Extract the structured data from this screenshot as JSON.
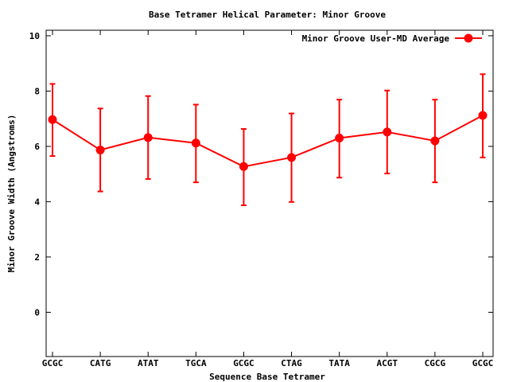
{
  "chart_data": {
    "type": "line",
    "title": "Base Tetramer Helical Parameter: Minor Groove",
    "xlabel": "Sequence Base Tetramer",
    "ylabel": "Minor Groove Width (Angstroms)",
    "ylim": [
      -1.6,
      10.2
    ],
    "yticks": [
      0,
      2,
      4,
      6,
      8,
      10
    ],
    "grid": false,
    "legend_position": "top-right",
    "categories": [
      "GCGC",
      "CATG",
      "ATAT",
      "TGCA",
      "GCGC",
      "CTAG",
      "TATA",
      "ACGT",
      "CGCG",
      "GCGC"
    ],
    "series": [
      {
        "name": "Minor Groove User-MD Average",
        "color": "#ff0000",
        "values": [
          6.97,
          5.87,
          6.32,
          6.12,
          5.27,
          5.6,
          6.3,
          6.52,
          6.2,
          7.12
        ],
        "error_low": [
          5.65,
          4.37,
          4.82,
          4.7,
          3.87,
          3.99,
          4.87,
          5.02,
          4.7,
          5.6
        ],
        "error_high": [
          8.26,
          7.37,
          7.82,
          7.51,
          6.63,
          7.19,
          7.69,
          8.02,
          7.69,
          8.61
        ]
      }
    ]
  }
}
